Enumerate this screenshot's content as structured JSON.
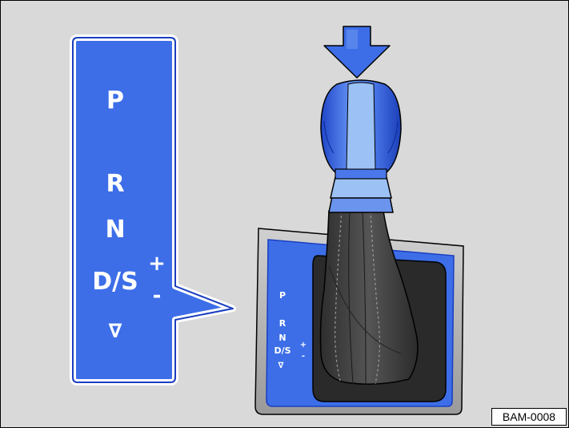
{
  "colors": {
    "blue": "#3d6ee8",
    "blue_dark": "#1a3ec0",
    "light_blue": "#9cc2f5",
    "background": "#d9d9d9",
    "boot": "#4a4a4a",
    "trim": "#b8b8b8"
  },
  "icons": {
    "push_arrow": "down-arrow-icon",
    "down_triangle": "down-triangle-icon"
  },
  "panel": {
    "p": "P",
    "r": "R",
    "n": "N",
    "ds": "D/S",
    "plus": "+",
    "minus": "-",
    "down": "∇"
  },
  "console": {
    "p": "P",
    "r": "R",
    "n": "N",
    "ds": "D/S",
    "plus": "+",
    "minus": "-",
    "down": "∇"
  },
  "figure_code": "BAM-0008"
}
